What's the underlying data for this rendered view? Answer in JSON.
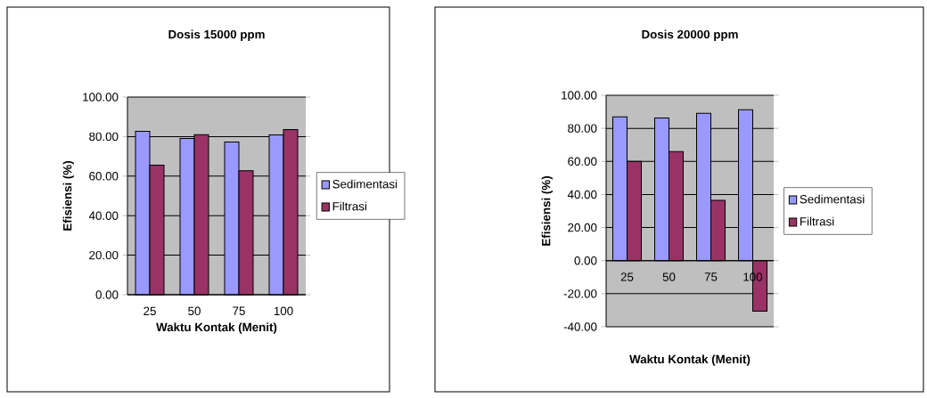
{
  "chart_data": [
    {
      "type": "bar",
      "title": "Dosis 15000 ppm",
      "xlabel": "Waktu Kontak (Menit)",
      "ylabel": "Efisiensi (%)",
      "categories": [
        "25",
        "50",
        "75",
        "100"
      ],
      "series": [
        {
          "name": "Sedimentasi",
          "color": "#9999ff",
          "values": [
            82.7,
            79.1,
            77.3,
            80.9
          ]
        },
        {
          "name": "Filtrasi",
          "color": "#993366",
          "values": [
            65.5,
            81.0,
            62.7,
            83.6
          ]
        }
      ],
      "ylim": [
        0,
        100
      ],
      "yticks": [
        {
          "value": 0,
          "label": "0.00"
        },
        {
          "value": 20,
          "label": "20.00"
        },
        {
          "value": 40,
          "label": "40.00"
        },
        {
          "value": 60,
          "label": "60.00"
        },
        {
          "value": 80,
          "label": "80.00"
        },
        {
          "value": 100,
          "label": "100.00"
        }
      ],
      "grid": "y",
      "legend": "right"
    },
    {
      "type": "bar",
      "title": "Dosis 20000 ppm",
      "xlabel": "Waktu Kontak (Menit)",
      "ylabel": "Efisiensi (%)",
      "categories": [
        "25",
        "50",
        "75",
        "100"
      ],
      "series": [
        {
          "name": "Sedimentasi",
          "color": "#9999ff",
          "values": [
            87.0,
            86.2,
            89.1,
            91.2
          ]
        },
        {
          "name": "Filtrasi",
          "color": "#993366",
          "values": [
            60.0,
            66.0,
            36.4,
            -30.6
          ]
        }
      ],
      "ylim": [
        -40,
        100
      ],
      "yticks": [
        {
          "value": -40,
          "label": "-40.00"
        },
        {
          "value": -20,
          "label": "-20.00"
        },
        {
          "value": 0,
          "label": "0.00"
        },
        {
          "value": 20,
          "label": "20.00"
        },
        {
          "value": 40,
          "label": "40.00"
        },
        {
          "value": 60,
          "label": "60.00"
        },
        {
          "value": 80,
          "label": "80.00"
        },
        {
          "value": 100,
          "label": "100.00"
        }
      ],
      "grid": "y",
      "legend": "right"
    }
  ]
}
